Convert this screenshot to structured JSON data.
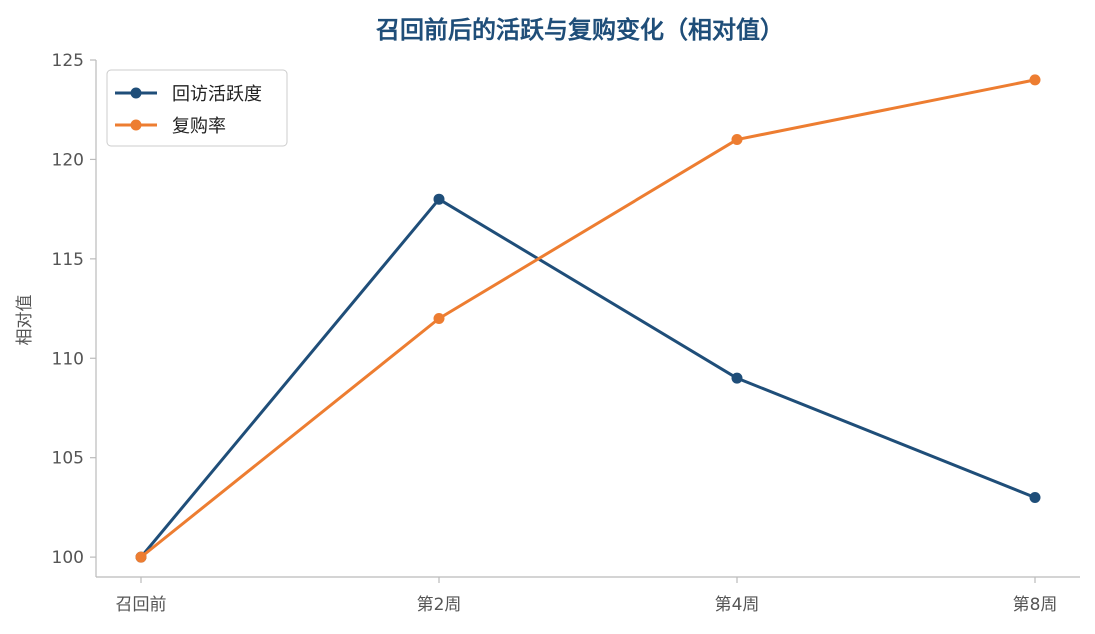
{
  "chart_data": {
    "type": "line",
    "title": "召回前后的活跃与复购变化（相对值）",
    "xlabel": "",
    "ylabel": "相对值",
    "categories": [
      "召回前",
      "第2周",
      "第4周",
      "第8周"
    ],
    "series": [
      {
        "name": "回访活跃度",
        "values": [
          100,
          118,
          109,
          103
        ],
        "color": "#1f4e79"
      },
      {
        "name": "复购率",
        "values": [
          100,
          112,
          121,
          124
        ],
        "color": "#ed7d31"
      }
    ],
    "ylim": [
      99,
      125
    ],
    "yticks": [
      100,
      105,
      110,
      115,
      120,
      125
    ],
    "grid": false,
    "legend_position": "top-left",
    "colors": {
      "title": "#1f4e79",
      "axis": "#bbbbbb",
      "tick_text": "#555555"
    }
  }
}
